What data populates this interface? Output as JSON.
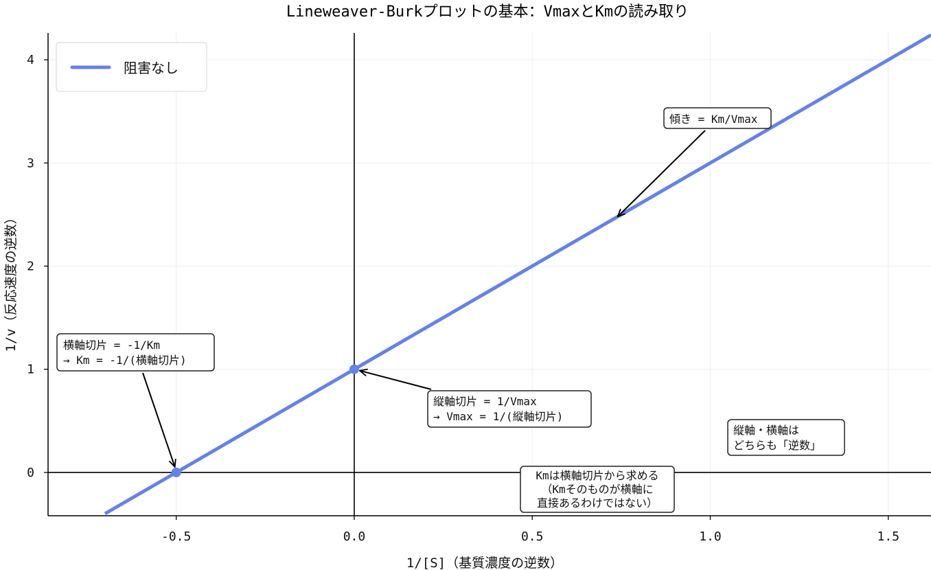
{
  "chart_data": {
    "type": "line",
    "title": "Lineweaver-Burkプロットの基本：VmaxとKmの読み取り",
    "xlabel": "1/[S]（基質濃度の逆数）",
    "ylabel": "1/v（反応速度の逆数）",
    "xlim": [
      -0.86,
      1.62
    ],
    "ylim": [
      -0.42,
      4.26
    ],
    "xticks": [
      -0.5,
      0.0,
      0.5,
      1.0,
      1.5
    ],
    "xtick_labels": [
      "-0.5",
      "0.0",
      "0.5",
      "1.0",
      "1.5"
    ],
    "yticks": [
      0,
      1,
      2,
      3,
      4
    ],
    "ytick_labels": [
      "0",
      "1",
      "2",
      "3",
      "4"
    ],
    "grid": true,
    "legend_position": "top-left",
    "series": [
      {
        "name": "阻害なし",
        "color": "#6482e8",
        "x": [
          -0.7,
          1.62
        ],
        "y": [
          -0.4,
          4.24
        ]
      }
    ],
    "points": [
      {
        "name": "x-intercept",
        "x": -0.5,
        "y": 0,
        "color": "#6482e8"
      },
      {
        "name": "y-intercept",
        "x": 0,
        "y": 1,
        "color": "#6482e8"
      }
    ],
    "annotations": [
      {
        "id": "slope",
        "lines": [
          "傾き = Km/Vmax"
        ]
      },
      {
        "id": "x-intercept",
        "lines": [
          "横軸切片 = -1/Km",
          "→ Km = -1/(横軸切片)"
        ]
      },
      {
        "id": "y-intercept",
        "lines": [
          "縦軸切片 = 1/Vmax",
          "→ Vmax = 1/(縦軸切片)"
        ]
      },
      {
        "id": "reciprocal-note",
        "lines": [
          "縦軸・横軸は",
          "どちらも「逆数」"
        ]
      },
      {
        "id": "km-note",
        "lines": [
          "Kmは横軸切片から求める",
          "（Kmそのものが横軸に",
          "直接あるわけではない）"
        ]
      }
    ]
  }
}
